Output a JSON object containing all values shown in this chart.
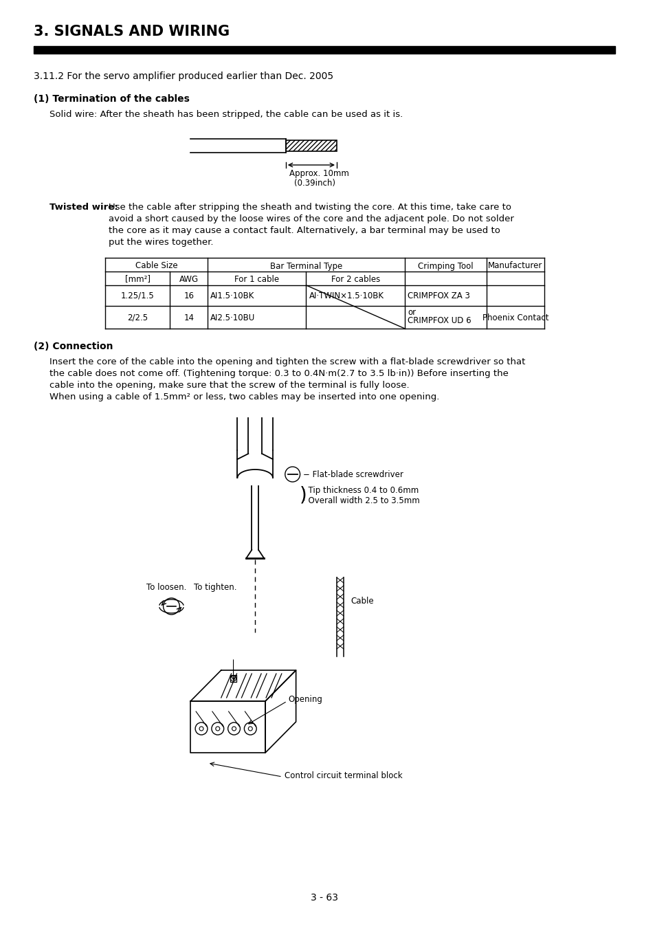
{
  "title": "3. SIGNALS AND WIRING",
  "section": "3.11.2 For the servo amplifier produced earlier than Dec. 2005",
  "subsection1": "(1) Termination of the cables",
  "solid_wire_text": "Solid wire: After the sheath has been stripped, the cable can be used as it is.",
  "approx_label": "Approx. 10mm",
  "approx_label2": "(0.39inch)",
  "twisted_wire_label": "Twisted wire:",
  "twisted_wire_text1": "Use the cable after stripping the sheath and twisting the core. At this time, take care to",
  "twisted_wire_text2": "avoid a short caused by the loose wires of the core and the adjacent pole. Do not solder",
  "twisted_wire_text3": "the core as it may cause a contact fault. Alternatively, a bar terminal may be used to",
  "twisted_wire_text4": "put the wires together.",
  "subsection2": "(2) Connection",
  "connection_text1": "Insert the core of the cable into the opening and tighten the screw with a flat-blade screwdriver so that",
  "connection_text2": "the cable does not come off. (Tightening torque: 0.3 to 0.4N·m(2.7 to 3.5 lb·in)) Before inserting the",
  "connection_text3": "cable into the opening, make sure that the screw of the terminal is fully loose.",
  "connection_text4": "When using a cable of 1.5mm² or less, two cables may be inserted into one opening.",
  "screwdriver_label1": "− Flat-blade screwdriver",
  "screwdriver_label2": "· Tip thickness 0.4 to 0.6mm",
  "screwdriver_label3": "· Overall width 2.5 to 3.5mm",
  "to_loosen": "To loosen.",
  "to_tighten": "To tighten.",
  "cable_label": "Cable",
  "opening_label": "Opening",
  "terminal_label": "Control circuit terminal block",
  "page_number": "3 - 63",
  "bg_color": "#ffffff",
  "text_color": "#000000"
}
